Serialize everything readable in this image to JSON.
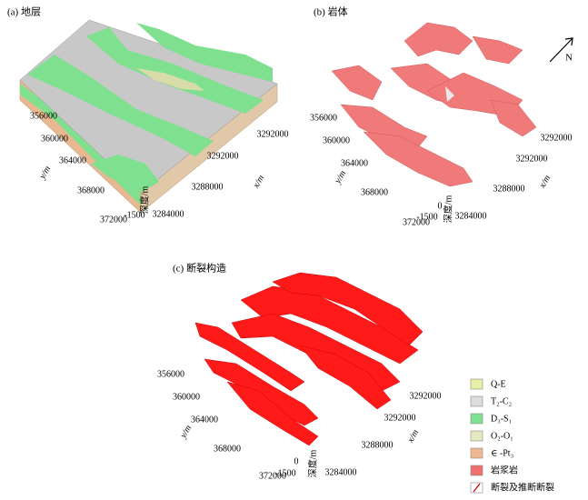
{
  "panels": [
    {
      "title": "(a)  地层",
      "y_label": "y/m",
      "x_label": "x/m",
      "depth_label": "深度/m",
      "y_ticks": [
        "356000",
        "360000",
        "364000",
        "368000",
        "372000"
      ],
      "x_ticks": [
        "3292000",
        "3292000",
        "3288000",
        "3284000"
      ],
      "z_ticks": [
        "-1500"
      ]
    },
    {
      "title": "(b)  岩体",
      "y_label": "y/m",
      "x_label": "x/m",
      "depth_label": "深度/m",
      "y_ticks": [
        "356000",
        "360000",
        "364000",
        "368000",
        "372000"
      ],
      "x_ticks": [
        "3292000",
        "3292000",
        "3288000",
        "3284000"
      ],
      "z_ticks": [
        "0",
        "-1500"
      ],
      "north": "N"
    },
    {
      "title": "(c)  断裂构造",
      "y_label": "y/m",
      "x_label": "x/m",
      "depth_label": "深度/m",
      "y_ticks": [
        "356000",
        "360000",
        "364000",
        "368000",
        "372000"
      ],
      "x_ticks": [
        "3292000",
        "3292000",
        "3288000",
        "3284000"
      ],
      "z_ticks": [
        "0",
        "-1500"
      ]
    }
  ],
  "legend": [
    {
      "label": "Q-E",
      "color": "#e8f0a8"
    },
    {
      "label": "T₂-C₂",
      "color": "#dcdcdc"
    },
    {
      "label": "D₃-S₁",
      "color": "#7fe08f"
    },
    {
      "label": "O₂-O₁",
      "color": "#e6e8c0"
    },
    {
      "label": "∈ -Pt₃",
      "color": "#f0b890"
    },
    {
      "label": "岩浆岩",
      "color": "#f07070"
    },
    {
      "label": "断裂及推断断裂",
      "color": "#ffffff"
    }
  ]
}
